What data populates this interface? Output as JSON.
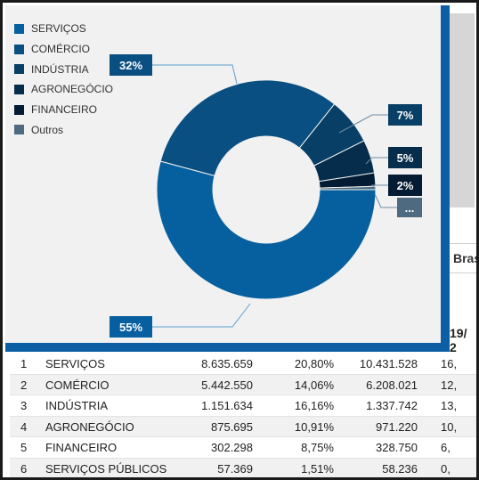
{
  "chart_data": {
    "type": "pie",
    "donut": true,
    "title": "",
    "categories": [
      "SERVIÇOS",
      "COMÉRCIO",
      "INDÚSTRIA",
      "AGRONEGÓCIO",
      "FINANCEIRO",
      "Outros"
    ],
    "values": [
      55,
      32,
      7,
      5,
      2,
      0.5
    ],
    "data_labels": [
      "55%",
      "32%",
      "7%",
      "5%",
      "2%",
      "..."
    ],
    "colors": [
      "#06609f",
      "#0a4f82",
      "#083f66",
      "#062d4c",
      "#041c33",
      "#4d6a80"
    ],
    "legend_position": "top-left"
  },
  "table": {
    "header_partial": "19/ 2",
    "tab_partial": "Bras",
    "rows": [
      {
        "n": "1",
        "name": "SERVIÇOS",
        "v1": "8.635.659",
        "p": "20,80%",
        "v2": "10.431.528",
        "v3": "16,"
      },
      {
        "n": "2",
        "name": "COMÉRCIO",
        "v1": "5.442.550",
        "p": "14,06%",
        "v2": "6.208.021",
        "v3": "12,"
      },
      {
        "n": "3",
        "name": "INDÚSTRIA",
        "v1": "1.151.634",
        "p": "16,16%",
        "v2": "1.337.742",
        "v3": "13,"
      },
      {
        "n": "4",
        "name": "AGRONEGÓCIO",
        "v1": "875.695",
        "p": "10,91%",
        "v2": "971.220",
        "v3": "10,"
      },
      {
        "n": "5",
        "name": "FINANCEIRO",
        "v1": "302.298",
        "p": "8,75%",
        "v2": "328.750",
        "v3": "6,"
      },
      {
        "n": "6",
        "name": "SERVIÇOS PÚBLICOS",
        "v1": "57.369",
        "p": "1,51%",
        "v2": "58.236",
        "v3": "0,"
      }
    ]
  }
}
